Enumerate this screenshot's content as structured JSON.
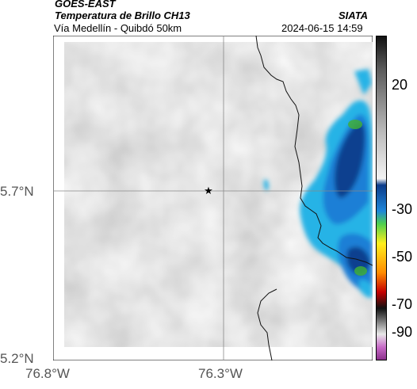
{
  "header": {
    "source": "GOES-EAST",
    "product": "Temperatura de Brillo CH13",
    "org": "SIATA",
    "route": "Vía Medellín - Quibdó 50km",
    "datetime": "2024-06-15 14:59"
  },
  "axes": {
    "lat_labels": [
      "5.7°N",
      "5.2°N"
    ],
    "lon_labels": [
      "76.8°W",
      "76.3°W"
    ]
  },
  "colorbar": {
    "labels": [
      "20",
      "-30",
      "-50",
      "-70",
      "-90"
    ]
  },
  "marker": {
    "symbol": "★"
  },
  "colors": {
    "cold_deep": "#0d3f8f",
    "cold_mid": "#1a7fd6",
    "cold_edge": "#27b3e6",
    "core_green": "#3fae3a",
    "border_line": "#111111"
  }
}
